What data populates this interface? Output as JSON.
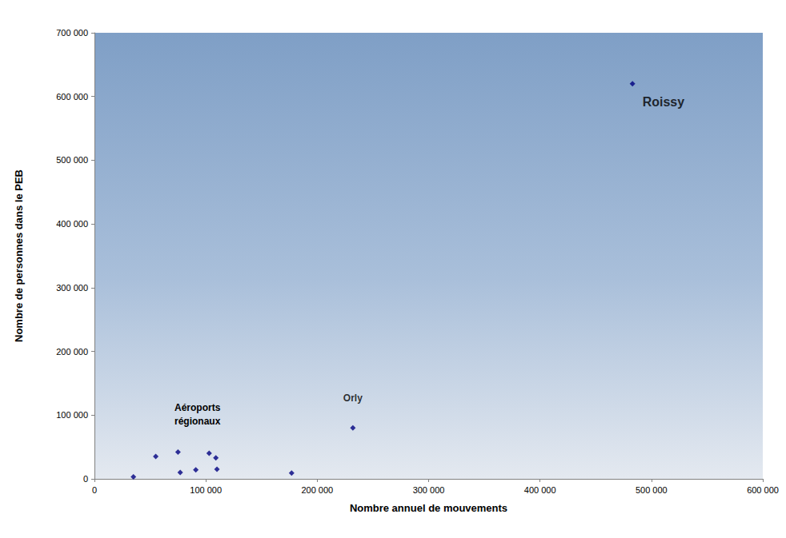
{
  "chart_data": {
    "type": "scatter",
    "xlabel": "Nombre annuel de mouvements",
    "ylabel": "Nombre de personnes dans le PEB",
    "series": [
      {
        "name": "Aéroports régionaux",
        "color": "#000080",
        "marker": "diamond",
        "x": [
          35000,
          55000,
          75000,
          77000,
          91000,
          103000,
          109000,
          110000,
          177000
        ],
        "values": [
          3000,
          35000,
          42000,
          10000,
          14000,
          40000,
          33000,
          15000,
          9000
        ]
      },
      {
        "name": "Orly",
        "color": "#000080",
        "marker": "diamond",
        "x": [
          232000
        ],
        "values": [
          80000
        ]
      },
      {
        "name": "Roissy",
        "color": "#000080",
        "marker": "diamond",
        "x": [
          483000
        ],
        "values": [
          620000
        ]
      }
    ],
    "xlim": [
      0,
      600000
    ],
    "xticks": [
      0,
      {
        "value": 100000,
        "label": "100 000"
      },
      {
        "value": 200000,
        "label": "200 000"
      },
      {
        "value": 300000,
        "label": "300 000"
      },
      {
        "value": 400000,
        "label": "400 000"
      },
      {
        "value": 500000,
        "label": "500 000"
      },
      {
        "value": 600000,
        "label": "600 000"
      }
    ],
    "ylim": [
      0,
      700000
    ],
    "yticks": [
      0,
      {
        "value": 100000,
        "label": "100 000"
      },
      {
        "value": 200000,
        "label": "200 000"
      },
      {
        "value": 300000,
        "label": "300 000"
      },
      {
        "value": 400000,
        "label": "400 000"
      },
      {
        "value": 500000,
        "label": "500 000"
      },
      {
        "value": 600000,
        "label": "600 000"
      },
      {
        "value": 700000,
        "label": "700 000"
      }
    ],
    "grid": false
  }
}
